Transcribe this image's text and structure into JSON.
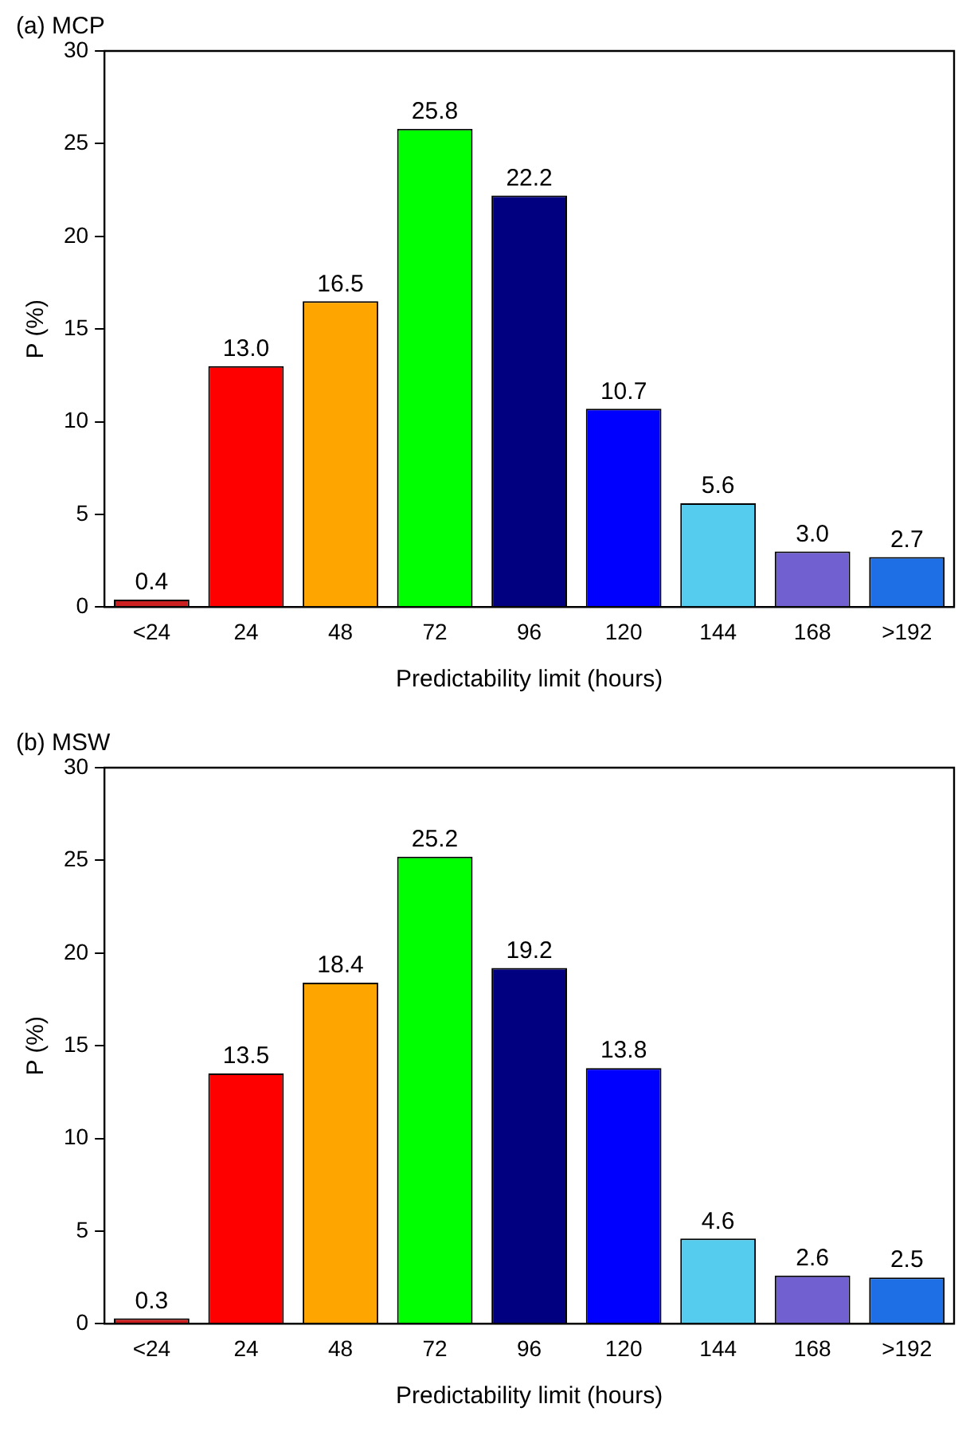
{
  "chart_data": [
    {
      "type": "bar",
      "title": "(a) MCP",
      "xlabel": "Predictability limit (hours)",
      "ylabel": "P (%)",
      "categories": [
        "<24",
        "24",
        "48",
        "72",
        "96",
        "120",
        "144",
        "168",
        ">192"
      ],
      "values": [
        0.4,
        13.0,
        16.5,
        25.8,
        22.2,
        10.7,
        5.6,
        3.0,
        2.7
      ],
      "colors": [
        "#cc1f1f",
        "#ff0000",
        "#ffa500",
        "#00ff00",
        "#000080",
        "#0000ff",
        "#55ccee",
        "#7060d0",
        "#1e6ee6"
      ],
      "value_labels": [
        "0.4",
        "13.0",
        "16.5",
        "25.8",
        "22.2",
        "10.7",
        "5.6",
        "3.0",
        "2.7"
      ],
      "ylim": [
        0,
        30
      ],
      "yticks": [
        0,
        5,
        10,
        15,
        20,
        25,
        30
      ],
      "grid": false,
      "legend": false
    },
    {
      "type": "bar",
      "title": "(b) MSW",
      "xlabel": "Predictability limit (hours)",
      "ylabel": "P (%)",
      "categories": [
        "<24",
        "24",
        "48",
        "72",
        "96",
        "120",
        "144",
        "168",
        ">192"
      ],
      "values": [
        0.3,
        13.5,
        18.4,
        25.2,
        19.2,
        13.8,
        4.6,
        2.6,
        2.5
      ],
      "colors": [
        "#cc1f1f",
        "#ff0000",
        "#ffa500",
        "#00ff00",
        "#000080",
        "#0000ff",
        "#55ccee",
        "#7060d0",
        "#1e6ee6"
      ],
      "value_labels": [
        "0.3",
        "13.5",
        "18.4",
        "25.2",
        "19.2",
        "13.8",
        "4.6",
        "2.6",
        "2.5"
      ],
      "ylim": [
        0,
        30
      ],
      "yticks": [
        0,
        5,
        10,
        15,
        20,
        25,
        30
      ],
      "grid": false,
      "legend": false
    }
  ]
}
